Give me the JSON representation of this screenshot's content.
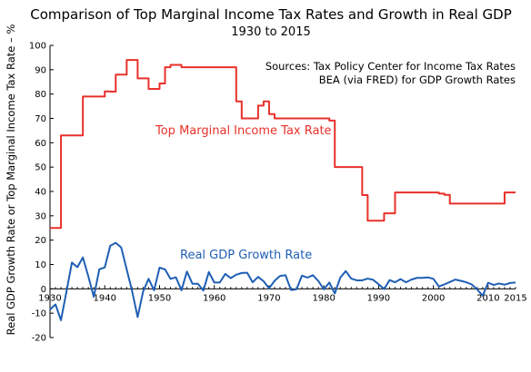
{
  "chart_data": {
    "type": "line",
    "title": "Comparison of Top Marginal Income Tax Rates and Growth in Real GDP",
    "subtitle": "1930 to 2015",
    "xlabel": "",
    "ylabel": "Real GDP Growth Rate or Top Marginal Income Tax Rate – %",
    "xlim": [
      1930,
      2015
    ],
    "ylim": [
      -20,
      100
    ],
    "x_ticks": [
      "1930",
      "1940",
      "1950",
      "1960",
      "1970",
      "1980",
      "1990",
      "2000",
      "2010",
      "2015"
    ],
    "y_ticks": [
      "-20",
      "-10",
      "0",
      "10",
      "20",
      "30",
      "40",
      "50",
      "60",
      "70",
      "80",
      "90",
      "100"
    ],
    "grid": false,
    "annotations": {
      "sources_line1": "Sources:  Tax Policy Center for Income Tax Rates",
      "sources_line2": "BEA (via FRED) for GDP Growth Rates"
    },
    "series": [
      {
        "name": "Top Marginal Income Tax Rate",
        "color": "#e8312a",
        "step": true,
        "x": [
          1930,
          1931,
          1932,
          1933,
          1934,
          1935,
          1936,
          1937,
          1938,
          1939,
          1940,
          1941,
          1942,
          1943,
          1944,
          1945,
          1946,
          1947,
          1948,
          1949,
          1950,
          1951,
          1952,
          1953,
          1954,
          1955,
          1956,
          1957,
          1958,
          1959,
          1960,
          1961,
          1962,
          1963,
          1964,
          1965,
          1966,
          1967,
          1968,
          1969,
          1970,
          1971,
          1972,
          1973,
          1974,
          1975,
          1976,
          1977,
          1978,
          1979,
          1980,
          1981,
          1982,
          1983,
          1984,
          1985,
          1986,
          1987,
          1988,
          1989,
          1990,
          1991,
          1992,
          1993,
          1994,
          1995,
          1996,
          1997,
          1998,
          1999,
          2000,
          2001,
          2002,
          2003,
          2004,
          2005,
          2006,
          2007,
          2008,
          2009,
          2010,
          2011,
          2012,
          2013,
          2014,
          2015
        ],
        "values": [
          25,
          25,
          63,
          63,
          63,
          63,
          79,
          79,
          79,
          79,
          81.1,
          81,
          88,
          88,
          94,
          94,
          86.45,
          86.45,
          82.13,
          82.13,
          84.36,
          91,
          92,
          92,
          91,
          91,
          91,
          91,
          91,
          91,
          91,
          91,
          91,
          91,
          77,
          70,
          70,
          70,
          75.25,
          77,
          71.75,
          70,
          70,
          70,
          70,
          70,
          70,
          70,
          70,
          70,
          70,
          69.13,
          50,
          50,
          50,
          50,
          50,
          38.5,
          28,
          28,
          28,
          31,
          31,
          39.6,
          39.6,
          39.6,
          39.6,
          39.6,
          39.6,
          39.6,
          39.6,
          39.1,
          38.6,
          35,
          35,
          35,
          35,
          35,
          35,
          35,
          35,
          35,
          35,
          39.6,
          39.6,
          39.6
        ]
      },
      {
        "name": "Real GDP Growth Rate",
        "color": "#1f5fb4",
        "step": false,
        "x": [
          1930,
          1931,
          1932,
          1933,
          1934,
          1935,
          1936,
          1937,
          1938,
          1939,
          1940,
          1941,
          1942,
          1943,
          1944,
          1945,
          1946,
          1947,
          1948,
          1949,
          1950,
          1951,
          1952,
          1953,
          1954,
          1955,
          1956,
          1957,
          1958,
          1959,
          1960,
          1961,
          1962,
          1963,
          1964,
          1965,
          1966,
          1967,
          1968,
          1969,
          1970,
          1971,
          1972,
          1973,
          1974,
          1975,
          1976,
          1977,
          1978,
          1979,
          1980,
          1981,
          1982,
          1983,
          1984,
          1985,
          1986,
          1987,
          1988,
          1989,
          1990,
          1991,
          1992,
          1993,
          1994,
          1995,
          1996,
          1997,
          1998,
          1999,
          2000,
          2001,
          2002,
          2003,
          2004,
          2005,
          2006,
          2007,
          2008,
          2009,
          2010,
          2011,
          2012,
          2013,
          2014,
          2015
        ],
        "values": [
          -8.5,
          -6.4,
          -12.9,
          -1.2,
          10.8,
          8.9,
          12.9,
          5.1,
          -3.3,
          8,
          8.8,
          17.7,
          18.9,
          17,
          8,
          -1,
          -11.6,
          -1.1,
          4.1,
          -0.6,
          8.7,
          8,
          4.1,
          4.7,
          -0.6,
          7.1,
          2.1,
          2.1,
          -0.7,
          6.9,
          2.6,
          2.6,
          6.1,
          4.4,
          5.8,
          6.5,
          6.6,
          2.7,
          4.9,
          3.1,
          0.2,
          3.3,
          5.3,
          5.6,
          -0.5,
          -0.2,
          5.4,
          4.6,
          5.6,
          3.2,
          -0.2,
          2.6,
          -1.9,
          4.6,
          7.3,
          4.2,
          3.5,
          3.5,
          4.2,
          3.7,
          1.9,
          -0.1,
          3.6,
          2.7,
          4,
          2.7,
          3.8,
          4.5,
          4.5,
          4.7,
          4.1,
          1,
          1.8,
          2.8,
          3.8,
          3.3,
          2.7,
          1.8,
          -0.3,
          -2.8,
          2.5,
          1.6,
          2.2,
          1.7,
          2.4,
          2.6
        ]
      }
    ]
  }
}
